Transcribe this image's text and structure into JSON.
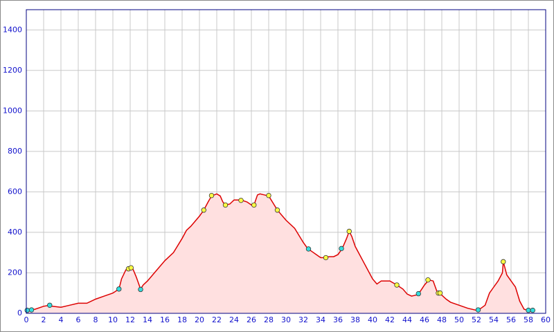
{
  "chart_data": {
    "type": "area",
    "x": [
      0,
      0.5,
      1,
      2,
      2.7,
      3,
      4,
      5,
      6,
      7,
      8,
      9,
      10,
      10.7,
      11,
      11.5,
      12,
      12.3,
      12.7,
      13.2,
      13.5,
      14,
      15,
      16,
      17,
      18,
      18.5,
      19,
      20,
      20.5,
      21,
      21.4,
      22,
      22.4,
      22.7,
      23,
      23.5,
      24,
      24.8,
      25.5,
      26,
      26.3,
      26.7,
      27,
      27.5,
      28,
      28.5,
      29,
      30,
      31,
      32,
      32.5,
      33,
      33.5,
      34,
      34.5,
      35,
      35.5,
      36,
      36.5,
      37,
      37.3,
      37.6,
      38,
      39,
      40,
      40.5,
      41,
      42,
      42.8,
      43.5,
      44,
      44.5,
      45,
      45.3,
      46,
      46.5,
      47,
      47.5,
      48,
      48.5,
      49,
      50,
      51,
      52,
      52.3,
      53,
      53.5,
      54,
      54.5,
      55,
      55.1,
      55.5,
      56,
      56.5,
      57,
      57.5,
      58,
      58.5
    ],
    "values": [
      15,
      18,
      20,
      35,
      40,
      35,
      30,
      40,
      50,
      50,
      70,
      85,
      100,
      120,
      170,
      215,
      225,
      220,
      180,
      120,
      140,
      160,
      210,
      260,
      300,
      370,
      410,
      430,
      480,
      510,
      550,
      580,
      590,
      580,
      550,
      535,
      540,
      560,
      560,
      550,
      535,
      535,
      585,
      590,
      585,
      580,
      545,
      510,
      460,
      420,
      350,
      320,
      305,
      290,
      275,
      275,
      280,
      280,
      290,
      320,
      370,
      405,
      380,
      330,
      250,
      170,
      145,
      160,
      160,
      140,
      120,
      95,
      85,
      90,
      95,
      140,
      165,
      160,
      100,
      90,
      70,
      55,
      40,
      25,
      15,
      18,
      40,
      100,
      130,
      160,
      200,
      255,
      190,
      160,
      130,
      60,
      20,
      15,
      15
    ],
    "color": "#dd0000",
    "fill": "#ffe0e0",
    "markers": [
      {
        "color": "#ffff44",
        "x": [
          11.8,
          12.1,
          20.5,
          21.4,
          23,
          24.8,
          26.3,
          28,
          29,
          34.6,
          37.3,
          42.8,
          46.4,
          47.6,
          47.8,
          55.1
        ],
        "values": [
          220,
          225,
          510,
          582,
          535,
          558,
          535,
          582,
          510,
          275,
          405,
          140,
          165,
          100,
          100,
          255
        ]
      },
      {
        "color": "#33dddd",
        "x": [
          0.1,
          0.6,
          2.7,
          10.7,
          13.2,
          32.6,
          36.4,
          45.3,
          52.2,
          58,
          58.5
        ],
        "values": [
          15,
          17,
          40,
          120,
          118,
          318,
          320,
          97,
          17,
          15,
          15
        ]
      }
    ],
    "xlim": [
      0,
      60
    ],
    "ylim": [
      0,
      1500
    ],
    "xticks": [
      0,
      2,
      4,
      6,
      8,
      10,
      12,
      14,
      16,
      18,
      20,
      22,
      24,
      26,
      28,
      30,
      32,
      34,
      36,
      38,
      40,
      42,
      44,
      46,
      48,
      50,
      52,
      54,
      56,
      58,
      60
    ],
    "yticks": [
      0,
      200,
      400,
      600,
      800,
      1000,
      1200,
      1400
    ],
    "grid": true
  }
}
